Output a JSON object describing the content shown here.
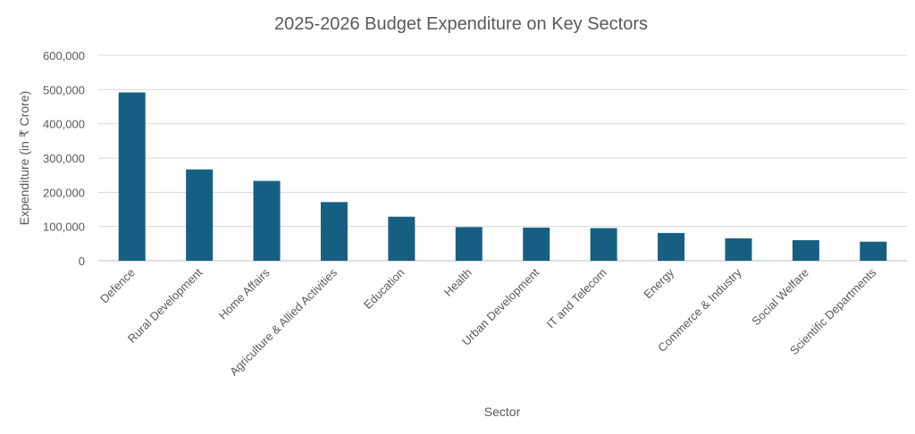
{
  "chart_data": {
    "type": "bar",
    "title": "2025-2026 Budget Expenditure on Key Sectors",
    "xlabel": "Sector",
    "ylabel": "Expenditure (in ₹ Crore)",
    "ylim": [
      0,
      600000
    ],
    "yticks": [
      0,
      100000,
      200000,
      300000,
      400000,
      500000,
      600000
    ],
    "ytick_labels": [
      "0",
      "100,000",
      "200,000",
      "300,000",
      "400,000",
      "500,000",
      "600,000"
    ],
    "grid": true,
    "color": "#175f82",
    "categories": [
      "Defence",
      "Rural Development",
      "Home Affairs",
      "Agriculture & Allied Activities",
      "Education",
      "Health",
      "Urban Development",
      "IT and Telecom",
      "Energy",
      "Commerce & Industry",
      "Social Welfare",
      "Scientific Departments"
    ],
    "values": [
      491732,
      266817,
      233211,
      171437,
      128650,
      98311,
      96777,
      95298,
      81174,
      65553,
      60052,
      55679
    ]
  }
}
